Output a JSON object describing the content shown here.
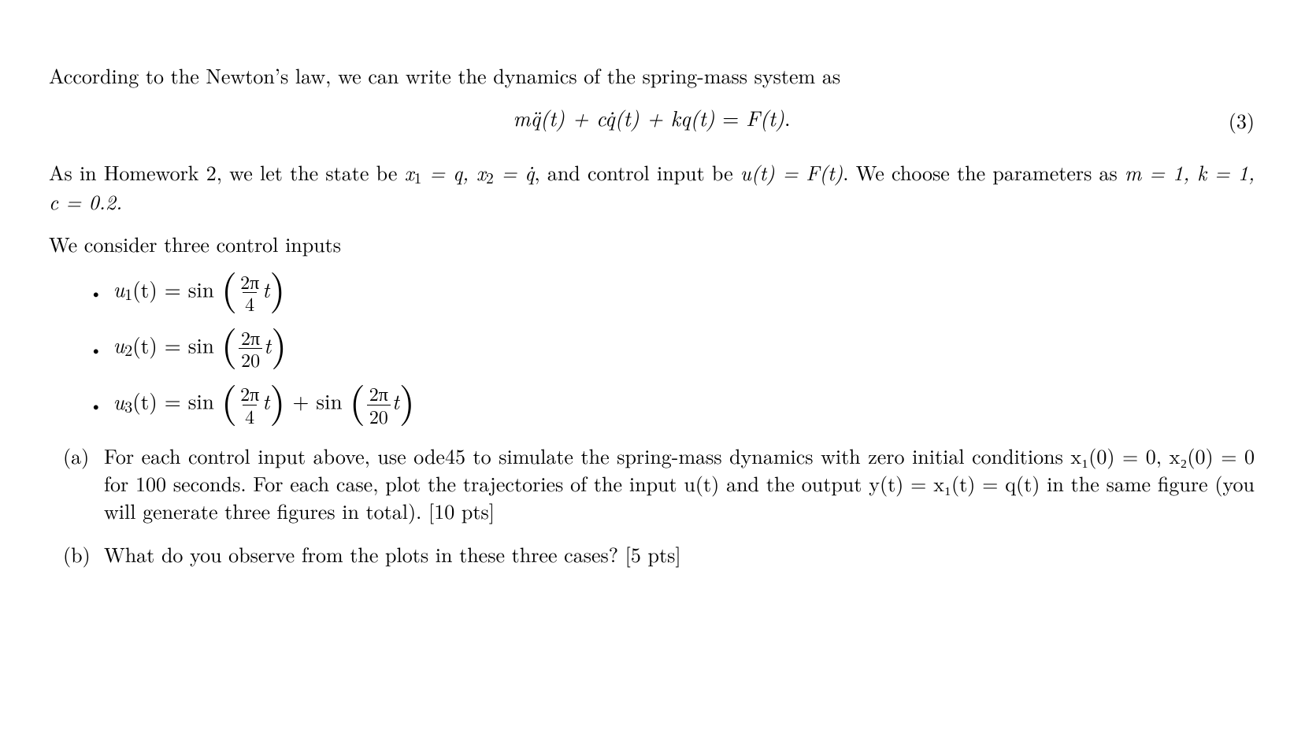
{
  "intro": "According to the Newton’s law, we can write the dynamics of the spring-mass system as",
  "equation": {
    "q_ddot_lhs": "mq̈(t) + cq̇(t) + kq(t)",
    "rhs": "F(t)",
    "number": "(3)"
  },
  "para2_a": "As in Homework 2, we let the state be ",
  "para2_b": "x",
  "para2_c": " = q, x",
  "para2_d": " = q̇",
  "para2_e": ", and control input be ",
  "para2_f": "u(t) = F(t)",
  "para2_g": ". We choose the parameters as ",
  "para2_h": "m = 1, k = 1, c = 0.2.",
  "para3": "We consider three control inputs",
  "inputs": [
    {
      "name": "u",
      "sub": "1",
      "terms": [
        {
          "num": "2π",
          "den": "4"
        }
      ]
    },
    {
      "name": "u",
      "sub": "2",
      "terms": [
        {
          "num": "2π",
          "den": "20"
        }
      ]
    },
    {
      "name": "u",
      "sub": "3",
      "terms": [
        {
          "num": "2π",
          "den": "4"
        },
        {
          "num": "2π",
          "den": "20"
        }
      ]
    }
  ],
  "sin_label": "sin",
  "plus": " + ",
  "t_var": "t",
  "eq_of_t": "(t) = ",
  "parts": {
    "a_label": "(a)",
    "a_text": "For each control input above, use ode45 to simulate the spring-mass dynamics with zero initial conditions x₁(0) = 0, x₂(0) = 0 for 100 seconds. For each case, plot the trajectories of the input u(t) and the output y(t) = x₁(t) = q(t) in the same figure (you will generate three figures in total). [10 pts]",
    "b_label": "(b)",
    "b_text": "What do you observe from the plots in these three cases? [5 pts]"
  }
}
